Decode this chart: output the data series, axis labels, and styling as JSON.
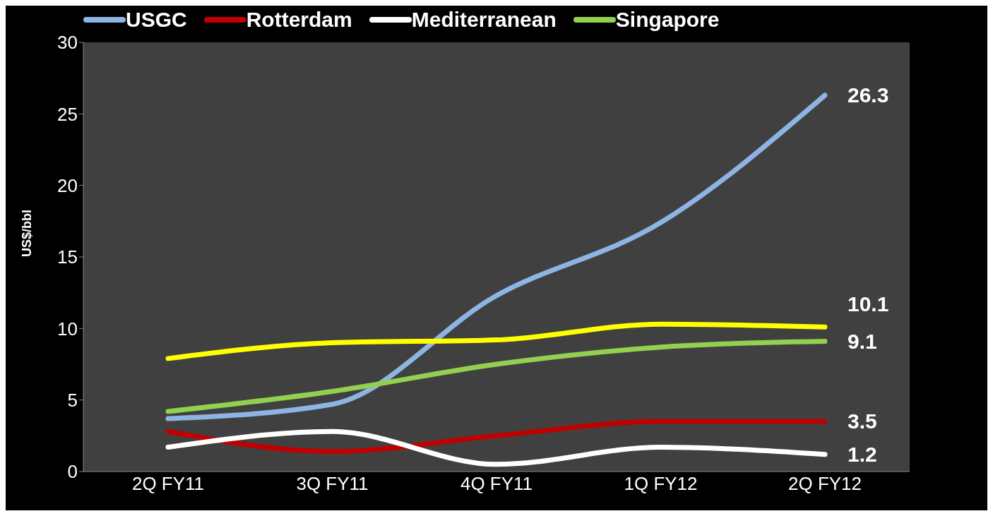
{
  "chart_data": {
    "type": "line",
    "ylabel": "US$/bbl",
    "categories": [
      "2Q FY11",
      "3Q FY11",
      "4Q FY11",
      "1Q FY12",
      "2Q FY12"
    ],
    "series": [
      {
        "name": "USGC",
        "color": "#8db4e2",
        "values": [
          3.7,
          4.7,
          12.3,
          17.4,
          26.3
        ],
        "value_labels": [
          null,
          null,
          null,
          null,
          "26.3"
        ]
      },
      {
        "name": "Rotterdam",
        "color": "#c00000",
        "values": [
          2.8,
          1.4,
          2.5,
          3.5,
          3.5
        ],
        "value_labels": [
          null,
          null,
          null,
          null,
          "3.5"
        ]
      },
      {
        "name": "Mediterranean",
        "color": "#ffffff",
        "values": [
          1.7,
          2.8,
          0.5,
          1.7,
          1.2
        ],
        "value_labels": [
          null,
          null,
          null,
          null,
          "1.2"
        ]
      },
      {
        "name": "Singapore",
        "color": "#92d050",
        "values": [
          4.2,
          5.6,
          7.5,
          8.7,
          9.1
        ],
        "value_labels": [
          null,
          null,
          null,
          null,
          "9.1"
        ]
      },
      {
        "color": "#ffff00",
        "values": [
          7.9,
          9.0,
          9.2,
          10.3,
          10.1
        ],
        "value_labels": [
          null,
          null,
          null,
          null,
          "10.1"
        ]
      }
    ],
    "ylim": [
      0,
      30
    ],
    "yticks": [
      0,
      5,
      10,
      15,
      20,
      25,
      30
    ],
    "grid": false,
    "legend": "top",
    "marker": "none",
    "line_style": "solid"
  }
}
